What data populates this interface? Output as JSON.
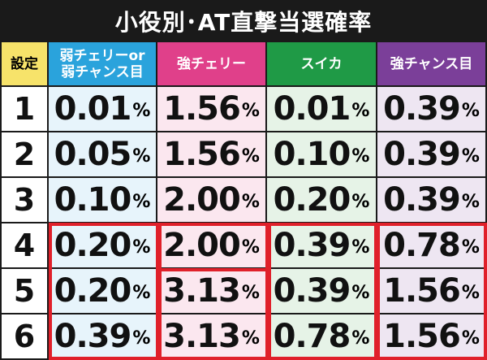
{
  "title": "小役別･AT直撃当選確率",
  "headers": {
    "setting": "設定",
    "col1_line1": "弱チェリーor",
    "col1_line2": "弱チャンス目",
    "col2": "強チェリー",
    "col3": "スイカ",
    "col4": "強チャンス目"
  },
  "unit": "%",
  "rows": [
    {
      "setting": "1",
      "values": [
        "0.01",
        "1.56",
        "0.01",
        "0.39"
      ]
    },
    {
      "setting": "2",
      "values": [
        "0.05",
        "1.56",
        "0.10",
        "0.39"
      ]
    },
    {
      "setting": "3",
      "values": [
        "0.10",
        "2.00",
        "0.20",
        "0.39"
      ]
    },
    {
      "setting": "4",
      "values": [
        "0.20",
        "2.00",
        "0.39",
        "0.78"
      ]
    },
    {
      "setting": "5",
      "values": [
        "0.20",
        "3.13",
        "0.39",
        "1.56"
      ]
    },
    {
      "setting": "6",
      "values": [
        "0.39",
        "3.13",
        "0.78",
        "1.56"
      ]
    }
  ],
  "colors": {
    "highlight": "#e0202a",
    "setting_header": "#f7e36a",
    "col1_header": "#2aa3dc",
    "col2_header": "#e0408a",
    "col3_header": "#1f9a46",
    "col4_header": "#7b3f99"
  }
}
